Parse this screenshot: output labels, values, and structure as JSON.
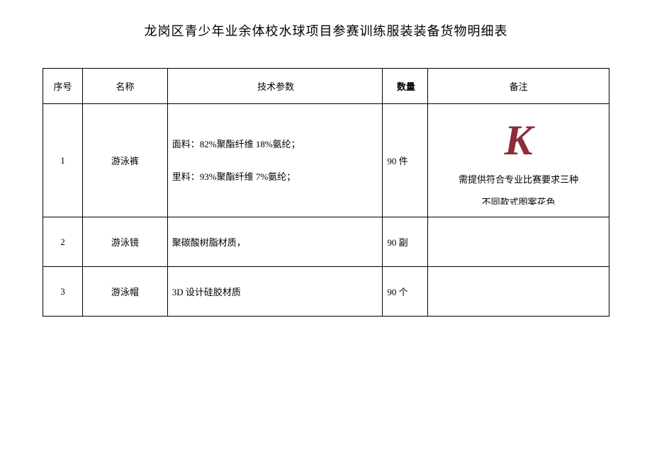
{
  "title": "龙岗区青少年业余体校水球项目参赛训练服装装备货物明细表",
  "headers": {
    "seq": "序号",
    "name": "名称",
    "spec": "技术参数",
    "qty": "数量",
    "remark": "备注"
  },
  "rows": [
    {
      "seq": "1",
      "name": "游泳裤",
      "spec_line1": "面料：82%聚酯纤维 18%氨纶；",
      "spec_line2": "里料：93%聚酯纤维 7%氨纶；",
      "qty": "90 件",
      "watermark": "K",
      "remark_line1": "需提供符合专业比赛要求三种",
      "remark_line2": "不同款式图案花色"
    },
    {
      "seq": "2",
      "name": "游泳镜",
      "spec": "聚碳酸树脂材质，",
      "qty": "90 副",
      "remark": ""
    },
    {
      "seq": "3",
      "name": "游泳帽",
      "spec": "3D 设计硅胶材质",
      "qty": "90 个",
      "remark": ""
    }
  ],
  "colors": {
    "background": "#ffffff",
    "text": "#000000",
    "border": "#000000",
    "watermark": "#8b2d3a"
  }
}
